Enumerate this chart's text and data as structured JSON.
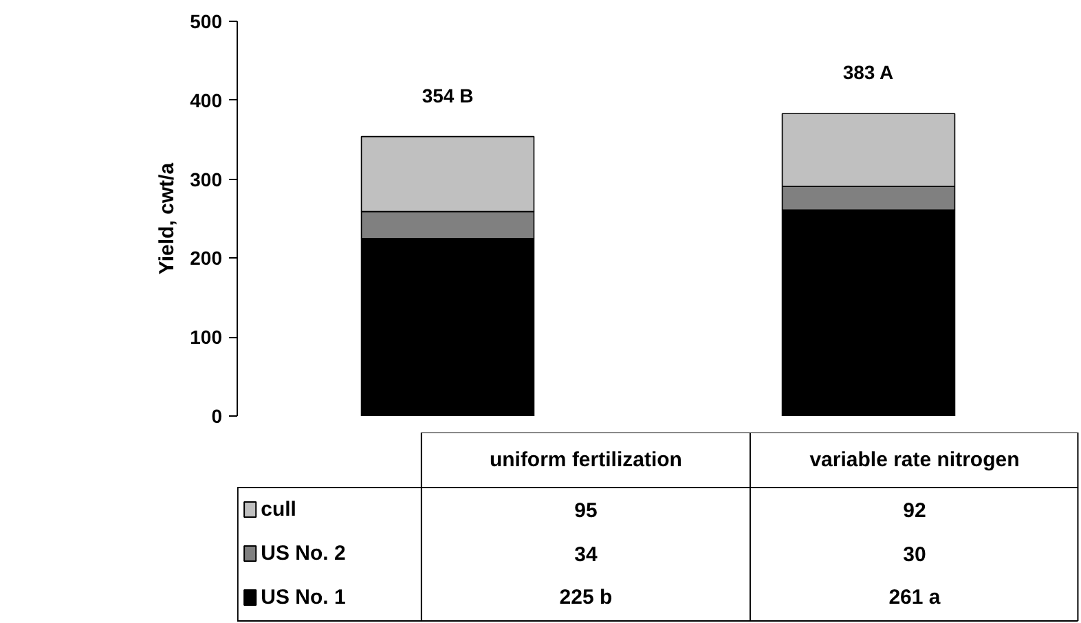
{
  "chart_data": {
    "type": "bar",
    "stacked": true,
    "ylabel": "Yield, cwt/a",
    "categories": [
      "uniform fertilization",
      "variable rate nitrogen"
    ],
    "series": [
      {
        "name": "US No. 1",
        "color": "#000000",
        "values": [
          225,
          261
        ],
        "value_labels": [
          "225 b",
          "261 a"
        ]
      },
      {
        "name": "US No. 2",
        "color": "#808080",
        "values": [
          34,
          30
        ],
        "value_labels": [
          "34",
          "30"
        ]
      },
      {
        "name": "cull",
        "color": "#c0c0c0",
        "values": [
          95,
          92
        ],
        "value_labels": [
          "95",
          "92"
        ]
      }
    ],
    "totals": [
      "354 B",
      "383 A"
    ],
    "ylim": [
      0,
      500
    ],
    "yticks": [
      0,
      100,
      200,
      300,
      400,
      500
    ],
    "grid": false,
    "legend": "bottom"
  }
}
